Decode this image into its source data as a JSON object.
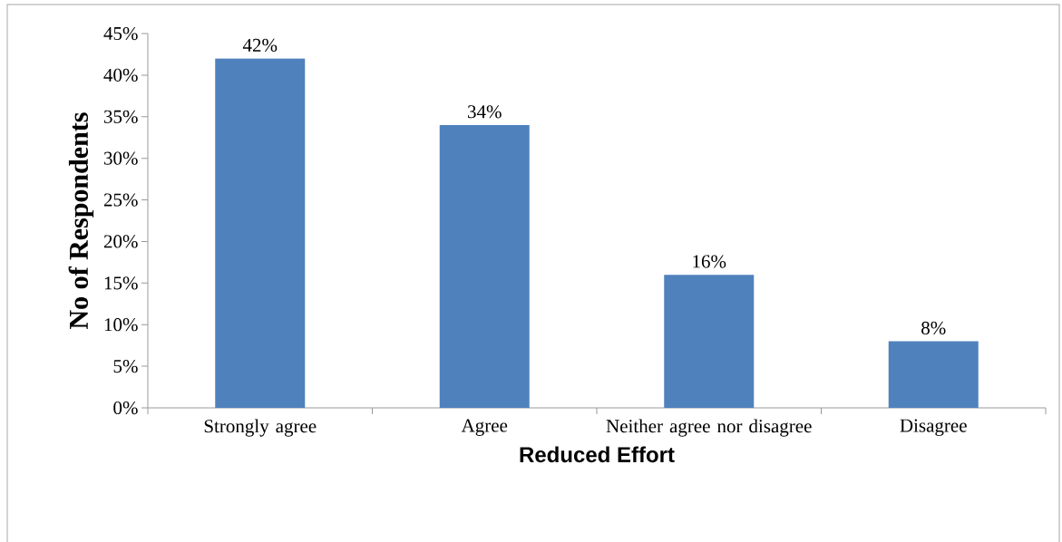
{
  "chart_data": {
    "type": "bar",
    "xlabel": "Reduced Effort",
    "ylabel": "No of Respondents",
    "categories": [
      "Strongly agree",
      "Agree",
      "Neither agree nor disagree",
      "Disagree"
    ],
    "values": [
      42,
      34,
      16,
      8
    ],
    "value_labels": [
      "42%",
      "34%",
      "16%",
      "8%"
    ],
    "color": "#4f81bd",
    "ylim": [
      0,
      45
    ],
    "yticks": [
      {
        "value": 0,
        "label": "0%"
      },
      {
        "value": 5,
        "label": "5%"
      },
      {
        "value": 10,
        "label": "10%"
      },
      {
        "value": 15,
        "label": "15%"
      },
      {
        "value": 20,
        "label": "20%"
      },
      {
        "value": 25,
        "label": "25%"
      },
      {
        "value": 30,
        "label": "30%"
      },
      {
        "value": 35,
        "label": "35%"
      },
      {
        "value": 40,
        "label": "40%"
      },
      {
        "value": 45,
        "label": "45%"
      }
    ],
    "grid": false
  }
}
